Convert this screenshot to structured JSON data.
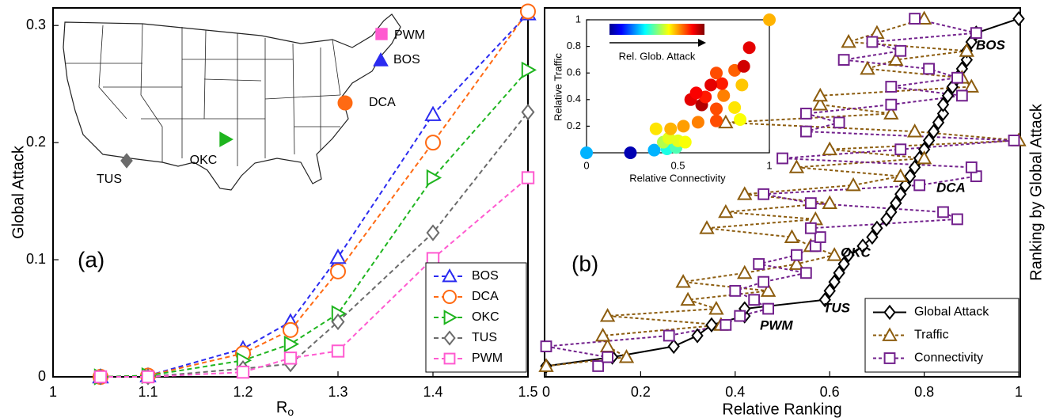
{
  "chart_data": [
    {
      "type": "line",
      "panel_label": "(a)",
      "xlabel": "R",
      "xlabel_subscript": "o",
      "ylabel": "Global Attack",
      "x": [
        1.05,
        1.1,
        1.2,
        1.25,
        1.3,
        1.4,
        1.5
      ],
      "xlim": [
        1,
        1.5
      ],
      "xticks": [
        1,
        1.1,
        1.2,
        1.3,
        1.4,
        1.5
      ],
      "ylim": [
        0,
        0.315
      ],
      "yticks": [
        0,
        0.1,
        0.2,
        0.3
      ],
      "legend": "lower right",
      "series": [
        {
          "name": "BOS",
          "color": "#2b2bf0",
          "marker": "triangle-up",
          "values": [
            0,
            0.001,
            0.024,
            0.047,
            0.102,
            0.224,
            0.31
          ]
        },
        {
          "name": "DCA",
          "color": "#ff6a13",
          "marker": "circle",
          "values": [
            0,
            0.001,
            0.02,
            0.04,
            0.09,
            0.2,
            0.312
          ]
        },
        {
          "name": "OKC",
          "color": "#1fb51f",
          "marker": "triangle-right",
          "values": [
            0,
            0.001,
            0.014,
            0.028,
            0.054,
            0.17,
            0.262
          ]
        },
        {
          "name": "TUS",
          "color": "#6b6b6b",
          "marker": "diamond",
          "values": [
            0,
            0,
            0.007,
            0.011,
            0.047,
            0.123,
            0.226
          ]
        },
        {
          "name": "PWM",
          "color": "#ff5ad0",
          "marker": "square",
          "values": [
            0,
            0,
            0.004,
            0.016,
            0.022,
            0.101,
            0.17
          ]
        }
      ]
    },
    {
      "type": "ranking",
      "panel_label": "(b)",
      "xlabel": "Relative Ranking",
      "ylabel": "Ranking by Global Attack",
      "xlim": [
        0,
        1
      ],
      "xticks": [
        0,
        0.2,
        0.4,
        0.6,
        0.8,
        1
      ],
      "ylim": [
        0,
        1.03
      ],
      "legend": "lower right",
      "y": [
        0.03,
        0.055,
        0.085,
        0.115,
        0.145,
        0.17,
        0.19,
        0.215,
        0.24,
        0.265,
        0.29,
        0.315,
        0.34,
        0.365,
        0.39,
        0.415,
        0.44,
        0.46,
        0.485,
        0.51,
        0.535,
        0.56,
        0.585,
        0.61,
        0.635,
        0.66,
        0.685,
        0.71,
        0.735,
        0.76,
        0.785,
        0.81,
        0.835,
        0.86,
        0.885,
        0.91,
        0.935,
        0.96,
        1.0
      ],
      "series": [
        {
          "name": "Global Attack",
          "color": "#000000",
          "marker": "diamond",
          "dash": "solid",
          "values": [
            0,
            0.14,
            0.27,
            0.32,
            0.35,
            0.42,
            0.42,
            0.59,
            0.6,
            0.61,
            0.62,
            0.63,
            0.64,
            0.67,
            0.69,
            0.7,
            0.72,
            0.73,
            0.74,
            0.75,
            0.76,
            0.77,
            0.78,
            0.79,
            0.8,
            0.81,
            0.82,
            0.83,
            0.84,
            0.84,
            0.85,
            0.86,
            0.87,
            0.88,
            0.89,
            0.89,
            0.9,
            0.91,
            1.0
          ]
        },
        {
          "name": "Traffic",
          "color": "#8c5c0e",
          "marker": "triangle-up",
          "dash": "dotted",
          "values": [
            0,
            0.17,
            0.13,
            0.12,
            0.37,
            0.13,
            0.36,
            0.3,
            0.47,
            0.29,
            0.42,
            0.53,
            0.61,
            0.56,
            0.52,
            0.34,
            0.57,
            0.38,
            0.6,
            0.42,
            0.65,
            0.75,
            0.53,
            0.8,
            0.6,
            1.0,
            0.78,
            0.38,
            0.73,
            0.58,
            0.58,
            0.9,
            0.88,
            0.68,
            0.74,
            0.89,
            0.64,
            0.7,
            0.8
          ]
        },
        {
          "name": "Connectivity",
          "color": "#72208c",
          "marker": "square",
          "dash": "dotted",
          "values": [
            0.11,
            0.13,
            0,
            0.26,
            0.38,
            0.41,
            0.47,
            0.44,
            0.4,
            0.46,
            0.55,
            0.45,
            0.53,
            0.57,
            0.58,
            0.56,
            0.87,
            0.84,
            0.56,
            0.46,
            0.79,
            0.91,
            0.9,
            0.5,
            0.75,
            0.99,
            0.55,
            0.62,
            0.55,
            0.73,
            0.88,
            0.73,
            0.87,
            0.81,
            0.63,
            0.75,
            0.69,
            0.91,
            0.78
          ]
        }
      ],
      "annotations": [
        {
          "text": "BOS",
          "color": "#2b2bf0"
        },
        {
          "text": "DCA",
          "color": "#ff6a13"
        },
        {
          "text": "OKC",
          "color": "#1fb51f"
        },
        {
          "text": "TUS",
          "color": "#6b6b6b"
        },
        {
          "text": "PWM",
          "color": "#ff5ad0"
        }
      ]
    },
    {
      "type": "scatter",
      "xlabel": "Relative Connectivity",
      "ylabel": "Relative Traffic",
      "colorbar_label": "Rel. Glob. Attack",
      "colormap": "jet",
      "xlim": [
        0,
        1
      ],
      "xticks": [
        0,
        0.5,
        1
      ],
      "ylim": [
        0,
        1
      ],
      "yticks": [
        0.2,
        0.4,
        0.6,
        0.8,
        1
      ],
      "x": [
        0,
        0.24,
        0.37,
        0.44,
        0.49,
        0.42,
        0.45,
        0.5,
        0.54,
        0.38,
        0.46,
        0.53,
        0.61,
        0.71,
        0.84,
        0.81,
        0.71,
        0.63,
        0.57,
        0.65,
        0.75,
        0.85,
        0.74,
        0.81,
        0.71,
        0.86,
        0.89,
        1.0,
        0.6,
        0.68
      ],
      "values": [
        0,
        0,
        0.02,
        0.03,
        0.04,
        0.08,
        0.11,
        0.09,
        0.08,
        0.18,
        0.18,
        0.2,
        0.23,
        0.24,
        0.25,
        0.34,
        0.33,
        0.36,
        0.4,
        0.42,
        0.43,
        0.51,
        0.52,
        0.62,
        0.6,
        0.65,
        0.79,
        1.0,
        0.45,
        0.51
      ],
      "color_values": [
        0.3,
        0.05,
        0.3,
        0.4,
        0.45,
        0.55,
        0.6,
        0.6,
        0.62,
        0.65,
        0.7,
        0.72,
        0.75,
        0.8,
        0.62,
        0.65,
        0.8,
        0.95,
        0.9,
        0.85,
        0.75,
        0.68,
        0.85,
        0.78,
        0.8,
        0.92,
        0.9,
        0.7,
        0.88,
        0.9
      ]
    }
  ]
}
